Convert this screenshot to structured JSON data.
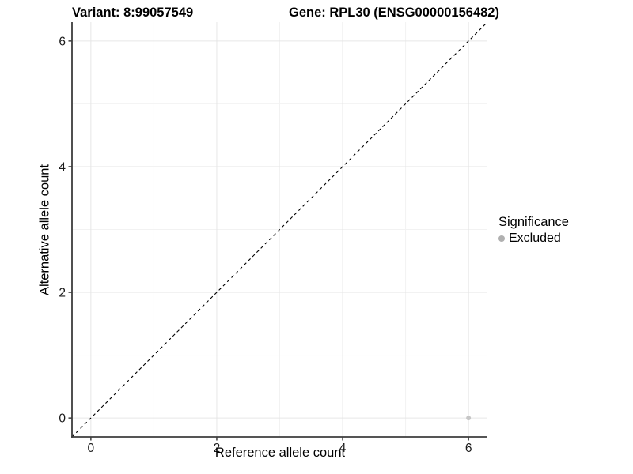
{
  "chart_data": {
    "type": "scatter",
    "title_left": "Variant: 8:99057549",
    "title_right": "Gene: RPL30 (ENSG00000156482)",
    "xlabel": "Reference allele count",
    "ylabel": "Alternative allele count",
    "xlim": [
      -0.3,
      6.3
    ],
    "ylim": [
      -0.3,
      6.3
    ],
    "xticks": [
      0,
      2,
      4,
      6
    ],
    "yticks": [
      0,
      2,
      4,
      6
    ],
    "minor_gridlines": [
      1,
      3,
      5
    ],
    "grid": "major and minor, light gray on white panel",
    "points": [
      {
        "x": 6,
        "y": 0,
        "significance": "Excluded"
      }
    ],
    "reference_line": {
      "kind": "identity y=x",
      "style": "dashed",
      "color": "#000000"
    },
    "legend": {
      "title": "Significance",
      "position": "right",
      "entries": [
        {
          "label": "Excluded",
          "color": "#b0b0b0",
          "marker": "circle"
        }
      ]
    },
    "colors": {
      "background": "#ffffff",
      "grid_major": "#e6e6e6",
      "grid_minor": "#f2f2f2",
      "axis_line": "#3d3d3d",
      "tick_mark": "#3d3d3d",
      "tick_label": "#1a1a1a",
      "point": "#c6c6c6",
      "title": "#000000"
    }
  }
}
